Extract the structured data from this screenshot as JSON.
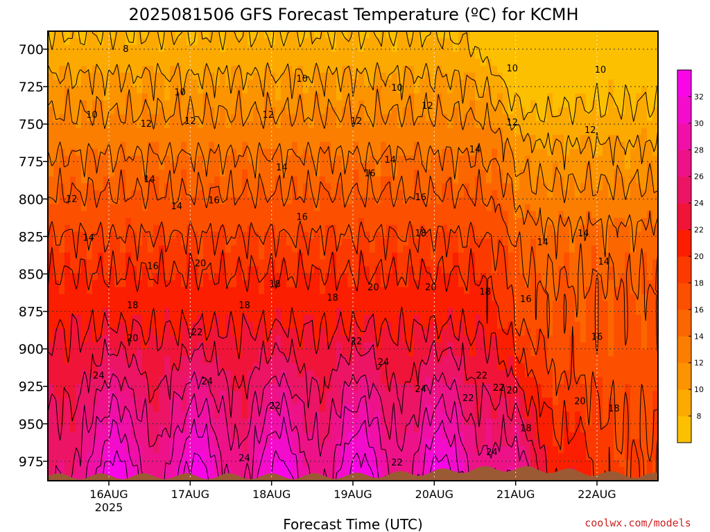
{
  "chart_data": {
    "type": "heatmap",
    "title": "2025081506 GFS Forecast Temperature (ºC) for KCMH",
    "xlabel": "Forecast Time (UTC)",
    "ylabel": "",
    "y_ticks": [
      700,
      725,
      750,
      775,
      800,
      825,
      850,
      875,
      900,
      925,
      950,
      975
    ],
    "y_tick_labels": [
      "700",
      "725",
      "750",
      "775",
      "800",
      "825",
      "850",
      "875",
      "900",
      "925",
      "950",
      "975"
    ],
    "ylim": [
      988,
      688
    ],
    "x_tick_labels": [
      "16AUG",
      "17AUG",
      "18AUG",
      "19AUG",
      "20AUG",
      "21AUG",
      "22AUG"
    ],
    "x_tick_hours": [
      18,
      42,
      66,
      90,
      114,
      138,
      162
    ],
    "xlim_hours": [
      0,
      180
    ],
    "x_sublabel": "2025",
    "grid": true,
    "colorbar": {
      "levels": [
        6,
        8,
        10,
        12,
        14,
        16,
        18,
        20,
        22,
        24,
        26,
        28,
        30,
        32,
        34
      ],
      "labels": [
        "8",
        "10",
        "12",
        "14",
        "16",
        "18",
        "20",
        "22",
        "24",
        "26",
        "28",
        "30",
        "32"
      ],
      "colors": [
        "#fcc000",
        "#fcaa00",
        "#fc9400",
        "#fc7e00",
        "#fc6600",
        "#fc5000",
        "#fc3a00",
        "#fc1e00",
        "#f01438",
        "#ec1464",
        "#ee1288",
        "#f010a8",
        "#f40ccc",
        "#f806e8"
      ]
    },
    "contour_labels": [
      {
        "text": "8",
        "h": 23,
        "p": 700
      },
      {
        "text": "10",
        "h": 13,
        "p": 744
      },
      {
        "text": "10",
        "h": 39,
        "p": 729
      },
      {
        "text": "10",
        "h": 75,
        "p": 720
      },
      {
        "text": "10",
        "h": 103,
        "p": 726
      },
      {
        "text": "10",
        "h": 137,
        "p": 713
      },
      {
        "text": "10",
        "h": 163,
        "p": 714
      },
      {
        "text": "12",
        "h": 7,
        "p": 800
      },
      {
        "text": "12",
        "h": 29,
        "p": 750
      },
      {
        "text": "12",
        "h": 42,
        "p": 748
      },
      {
        "text": "12",
        "h": 65,
        "p": 744
      },
      {
        "text": "12",
        "h": 91,
        "p": 748
      },
      {
        "text": "12",
        "h": 112,
        "p": 738
      },
      {
        "text": "12",
        "h": 137,
        "p": 749
      },
      {
        "text": "12",
        "h": 160,
        "p": 754
      },
      {
        "text": "14",
        "h": 12,
        "p": 826
      },
      {
        "text": "14",
        "h": 30,
        "p": 787
      },
      {
        "text": "14",
        "h": 38,
        "p": 805
      },
      {
        "text": "14",
        "h": 69,
        "p": 779
      },
      {
        "text": "14",
        "h": 101,
        "p": 774
      },
      {
        "text": "14",
        "h": 126,
        "p": 767
      },
      {
        "text": "14",
        "h": 146,
        "p": 829
      },
      {
        "text": "14",
        "h": 158,
        "p": 823
      },
      {
        "text": "14",
        "h": 164,
        "p": 842
      },
      {
        "text": "16",
        "h": 31,
        "p": 845
      },
      {
        "text": "16",
        "h": 49,
        "p": 801
      },
      {
        "text": "16",
        "h": 75,
        "p": 812
      },
      {
        "text": "16",
        "h": 95,
        "p": 783
      },
      {
        "text": "16",
        "h": 110,
        "p": 799
      },
      {
        "text": "16",
        "h": 141,
        "p": 867
      },
      {
        "text": "16",
        "h": 162,
        "p": 892
      },
      {
        "text": "18",
        "h": 25,
        "p": 871
      },
      {
        "text": "18",
        "h": 58,
        "p": 871
      },
      {
        "text": "18",
        "h": 67,
        "p": 857
      },
      {
        "text": "18",
        "h": 84,
        "p": 866
      },
      {
        "text": "18",
        "h": 110,
        "p": 823
      },
      {
        "text": "18",
        "h": 129,
        "p": 862
      },
      {
        "text": "18",
        "h": 141,
        "p": 953
      },
      {
        "text": "18",
        "h": 167,
        "p": 940
      },
      {
        "text": "20",
        "h": 25,
        "p": 893
      },
      {
        "text": "20",
        "h": 45,
        "p": 843
      },
      {
        "text": "20",
        "h": 96,
        "p": 859
      },
      {
        "text": "20",
        "h": 113,
        "p": 859
      },
      {
        "text": "20",
        "h": 137,
        "p": 928
      },
      {
        "text": "20",
        "h": 157,
        "p": 935
      },
      {
        "text": "22",
        "h": 44,
        "p": 889
      },
      {
        "text": "22",
        "h": 67,
        "p": 938
      },
      {
        "text": "22",
        "h": 91,
        "p": 895
      },
      {
        "text": "22",
        "h": 124,
        "p": 933
      },
      {
        "text": "22",
        "h": 128,
        "p": 918
      },
      {
        "text": "22",
        "h": 103,
        "p": 976
      },
      {
        "text": "22",
        "h": 133,
        "p": 926
      },
      {
        "text": "24",
        "h": 15,
        "p": 918
      },
      {
        "text": "24",
        "h": 47,
        "p": 922
      },
      {
        "text": "24",
        "h": 58,
        "p": 973
      },
      {
        "text": "24",
        "h": 99,
        "p": 909
      },
      {
        "text": "24",
        "h": 110,
        "p": 927
      },
      {
        "text": "24",
        "h": 131,
        "p": 969
      }
    ]
  },
  "credit": "coolwx.com/models"
}
